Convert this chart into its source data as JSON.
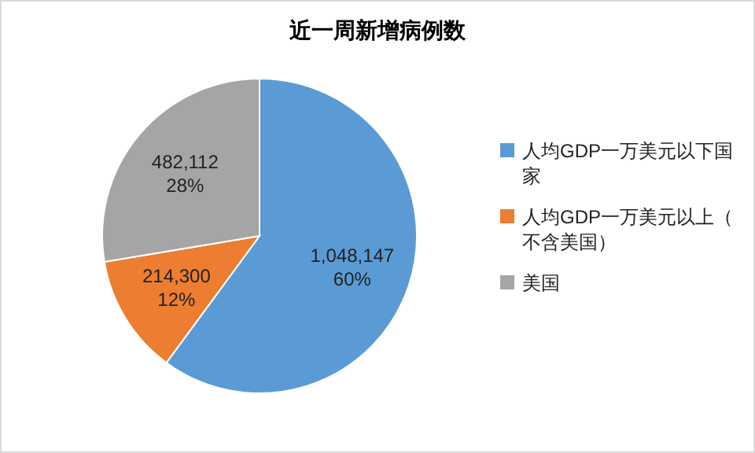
{
  "chart_data": {
    "type": "pie",
    "title": "近一周新增病例数",
    "categories": [
      "人均GDP一万美元以下国家",
      "人均GDP一万美元以上（不含美国）",
      "美国"
    ],
    "values": [
      1048147,
      214300,
      482112
    ],
    "colors": [
      "#5b9bd5",
      "#ed7d31",
      "#a5a5a5"
    ],
    "value_labels": [
      "1,048,147\n60%",
      "214,300\n12%",
      "482,112\n28%"
    ],
    "legend": "right"
  }
}
